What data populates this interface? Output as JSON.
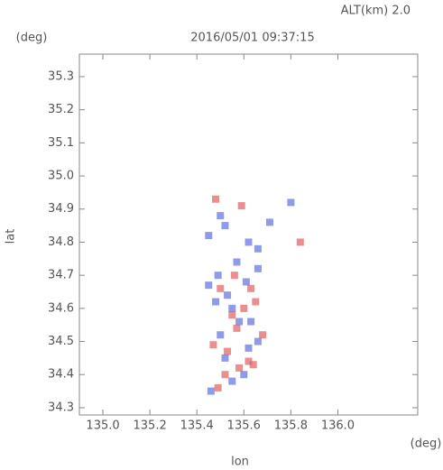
{
  "chart_data": {
    "type": "scatter",
    "title": "2016/05/01 09:37:15",
    "subtitle": "ALT(km) 2.0",
    "y_unit": "(deg)",
    "x_unit": "(deg)",
    "ylabel": "lat",
    "xlabel": "lon",
    "xlim": [
      134.9,
      136.34
    ],
    "ylim": [
      34.278,
      35.368
    ],
    "xticks": [
      {
        "value": 135,
        "label": "135.0"
      },
      135.2,
      135.4,
      135.6,
      135.8,
      {
        "value": 136,
        "label": "136.0"
      }
    ],
    "yticks": [
      34.3,
      34.4,
      34.5,
      34.6,
      34.7,
      34.8,
      34.9,
      {
        "value": 35,
        "label": "35.0"
      },
      35.1,
      35.2,
      35.3
    ],
    "grid": false,
    "series": [
      {
        "color": "#e06060",
        "x": [
          135.49,
          135.52,
          135.58,
          135.62,
          135.47,
          135.55,
          135.6,
          135.63,
          135.5,
          135.56,
          135.65,
          135.59,
          135.48,
          135.84,
          135.68,
          135.53,
          135.64,
          135.57
        ],
        "values": [
          34.36,
          34.4,
          34.42,
          34.44,
          34.49,
          34.58,
          34.6,
          34.66,
          34.66,
          34.7,
          34.62,
          34.91,
          34.93,
          34.8,
          34.52,
          34.47,
          34.43,
          34.54
        ]
      },
      {
        "color": "#6070e0",
        "x": [
          135.46,
          135.55,
          135.6,
          135.52,
          135.62,
          135.66,
          135.5,
          135.58,
          135.48,
          135.53,
          135.61,
          135.49,
          135.66,
          135.57,
          135.45,
          135.52,
          135.62,
          135.66,
          135.8,
          135.71,
          135.5,
          135.55,
          135.63,
          135.45
        ],
        "values": [
          34.35,
          34.38,
          34.4,
          34.45,
          34.48,
          34.5,
          34.52,
          34.56,
          34.62,
          34.64,
          34.68,
          34.7,
          34.72,
          34.74,
          34.82,
          34.85,
          34.8,
          34.78,
          34.92,
          34.86,
          34.88,
          34.6,
          34.56,
          34.67
        ]
      }
    ]
  }
}
